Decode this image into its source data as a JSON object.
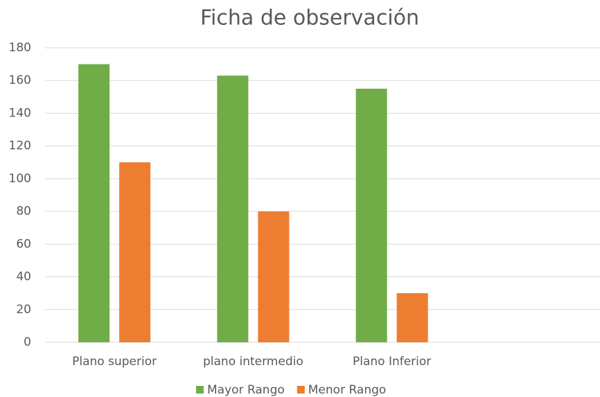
{
  "chart_data": {
    "type": "bar",
    "title": "Ficha de observación",
    "categories": [
      "Plano superior",
      "plano intermedio",
      "Plano Inferior",
      null
    ],
    "series": [
      {
        "name": "Mayor Rango",
        "color": "#70ad47",
        "values": [
          170,
          163,
          155,
          null
        ]
      },
      {
        "name": "Menor Rango",
        "color": "#ed7d31",
        "values": [
          110,
          80,
          30,
          null
        ]
      }
    ],
    "ylim": [
      0,
      180
    ],
    "yticks": [
      0,
      20,
      40,
      60,
      80,
      100,
      120,
      140,
      160,
      180
    ],
    "grid": true,
    "legend": "bottom"
  }
}
